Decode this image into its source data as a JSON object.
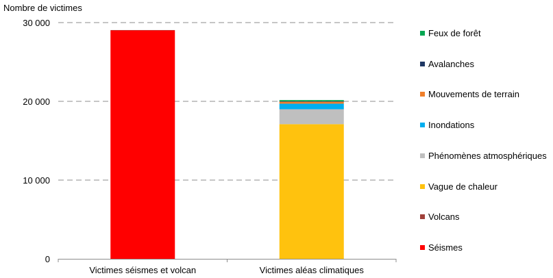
{
  "chart_data": {
    "type": "bar",
    "stacked": true,
    "ylabel": "Nombre de victimes",
    "ylim": [
      0,
      30000
    ],
    "yticks": [
      0,
      10000,
      20000,
      30000
    ],
    "ytick_labels": [
      "0",
      "10 000",
      "20 000",
      "30 000"
    ],
    "grid": "horizontal dashed",
    "legend_position": "right",
    "categories": [
      "Victimes séismes et volcan",
      "Victimes aléas climatiques"
    ],
    "series": [
      {
        "name": "Séismes",
        "color": "#ff0000",
        "values": [
          29000,
          0
        ]
      },
      {
        "name": "Volcans",
        "color": "#a0403a",
        "values": [
          50,
          0
        ]
      },
      {
        "name": "Vague de chaleur",
        "color": "#ffc20e",
        "values": [
          0,
          17100
        ]
      },
      {
        "name": "Phénomènes atmosphériques",
        "color": "#bfbfbf",
        "values": [
          0,
          1900
        ]
      },
      {
        "name": "Inondations",
        "color": "#00aeef",
        "values": [
          0,
          700
        ]
      },
      {
        "name": "Mouvements de terrain",
        "color": "#f07f2a",
        "values": [
          0,
          250
        ]
      },
      {
        "name": "Avalanches",
        "color": "#1f3864",
        "values": [
          0,
          60
        ]
      },
      {
        "name": "Feux de forêt",
        "color": "#00a651",
        "values": [
          0,
          150
        ]
      }
    ]
  }
}
